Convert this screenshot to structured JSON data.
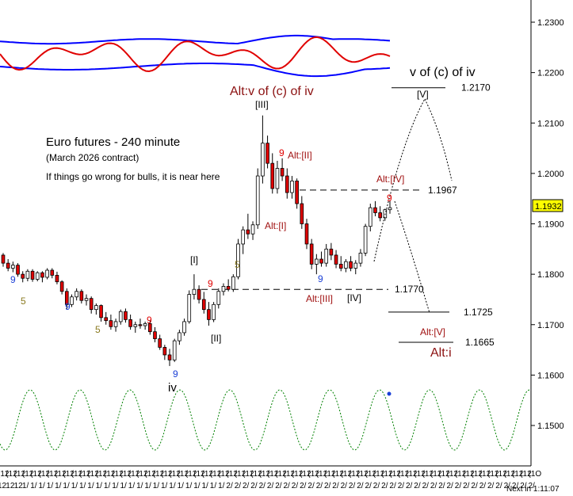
{
  "window": {
    "timer_label": "Next in",
    "timer_value": "1:11:07"
  },
  "chart_data": {
    "type": "candlestick",
    "title": "Euro futures - 240 minute",
    "subtitle": "(March 2026 contract)",
    "note": "If things go wrong for bulls, it is near here",
    "ylim": [
      1.145,
      1.238
    ],
    "y_ticks": [
      "1.2300",
      "1.2200",
      "1.2100",
      "1.2000",
      "1.1900",
      "1.1800",
      "1.1700",
      "1.1600",
      "1.1500"
    ],
    "y_tick_values": [
      1.23,
      1.22,
      1.21,
      1.2,
      1.19,
      1.18,
      1.17,
      1.16,
      1.15
    ],
    "x_tick_labels_top": [
      "(12",
      "(12",
      "(12",
      "(12",
      "(12",
      "(12",
      "(12",
      "(12",
      "(12",
      "(12",
      "(12",
      "(12",
      "(12",
      "(12",
      "(12",
      "(12",
      "(12",
      "(12",
      "(12",
      "(12",
      "(12",
      "(12",
      "(12",
      "(12",
      "(12",
      "(12",
      "(12",
      "(12",
      "(12",
      "(12",
      "(12",
      "(12",
      "(12",
      "(12",
      "(12",
      "(12",
      "(12",
      "(12",
      "(12",
      "(12",
      "(12",
      "(12",
      "(12",
      "(12",
      "(12",
      "(12",
      "(12",
      "(12",
      "(12",
      "(12",
      "(12",
      "(12",
      "(12",
      "(12",
      "(12",
      "(12",
      "(12",
      "(12",
      "(12",
      "(12",
      "(12",
      "(12",
      "(12",
      "(12",
      "(12",
      "(1O"
    ],
    "x_tick_labels_bottom": [
      "12",
      "12",
      "12",
      "1/",
      "1/",
      "1/",
      "1/",
      "1/",
      "1/",
      "1/",
      "1/",
      "1/",
      "1/",
      "1/",
      "1/",
      "1/",
      "1/",
      "1/",
      "1/",
      "1/",
      "1/",
      "1/",
      "1/",
      "1/",
      "1/",
      "1/",
      "1/",
      "1/",
      "2/",
      "2/",
      "2/",
      "2/",
      "2/",
      "2/",
      "2/",
      "2/",
      "2/",
      "2/",
      "2/",
      "2/",
      "2/",
      "2/",
      "2/",
      "2/",
      "2/",
      "2/",
      "2/",
      "2/",
      "2/",
      "2/",
      "2/",
      "2/",
      "2/",
      "2/",
      "2/",
      "2/",
      "2/",
      "2/",
      "2/",
      "2/",
      "2/",
      "2/",
      "2/",
      "2/",
      "2/",
      "2/",
      "2/"
    ],
    "current_price": "1.1932",
    "current_price_value": 1.1932,
    "candles": [
      {
        "o": 1.1838,
        "h": 1.1842,
        "l": 1.1815,
        "c": 1.1822
      },
      {
        "o": 1.1822,
        "h": 1.183,
        "l": 1.1806,
        "c": 1.1812
      },
      {
        "o": 1.1812,
        "h": 1.1825,
        "l": 1.1804,
        "c": 1.1818
      },
      {
        "o": 1.1818,
        "h": 1.1822,
        "l": 1.1795,
        "c": 1.18
      },
      {
        "o": 1.18,
        "h": 1.1806,
        "l": 1.1784,
        "c": 1.1792
      },
      {
        "o": 1.1792,
        "h": 1.181,
        "l": 1.1786,
        "c": 1.1806
      },
      {
        "o": 1.1806,
        "h": 1.181,
        "l": 1.1785,
        "c": 1.179
      },
      {
        "o": 1.179,
        "h": 1.1806,
        "l": 1.1786,
        "c": 1.1803
      },
      {
        "o": 1.1803,
        "h": 1.1806,
        "l": 1.1784,
        "c": 1.1794
      },
      {
        "o": 1.1794,
        "h": 1.1812,
        "l": 1.179,
        "c": 1.1808
      },
      {
        "o": 1.1808,
        "h": 1.1812,
        "l": 1.1792,
        "c": 1.1798
      },
      {
        "o": 1.1798,
        "h": 1.1805,
        "l": 1.178,
        "c": 1.1785
      },
      {
        "o": 1.1785,
        "h": 1.1788,
        "l": 1.176,
        "c": 1.1766
      },
      {
        "o": 1.1766,
        "h": 1.1772,
        "l": 1.173,
        "c": 1.174
      },
      {
        "o": 1.174,
        "h": 1.176,
        "l": 1.1735,
        "c": 1.1755
      },
      {
        "o": 1.1755,
        "h": 1.1772,
        "l": 1.1748,
        "c": 1.1766
      },
      {
        "o": 1.1766,
        "h": 1.177,
        "l": 1.1742,
        "c": 1.1748
      },
      {
        "o": 1.1748,
        "h": 1.176,
        "l": 1.1738,
        "c": 1.1752
      },
      {
        "o": 1.1752,
        "h": 1.1756,
        "l": 1.1722,
        "c": 1.173
      },
      {
        "o": 1.173,
        "h": 1.1742,
        "l": 1.172,
        "c": 1.1738
      },
      {
        "o": 1.1738,
        "h": 1.174,
        "l": 1.1706,
        "c": 1.1714
      },
      {
        "o": 1.1714,
        "h": 1.1725,
        "l": 1.17,
        "c": 1.1708
      },
      {
        "o": 1.1708,
        "h": 1.172,
        "l": 1.169,
        "c": 1.1696
      },
      {
        "o": 1.1696,
        "h": 1.1712,
        "l": 1.1686,
        "c": 1.1706
      },
      {
        "o": 1.1706,
        "h": 1.173,
        "l": 1.17,
        "c": 1.1726
      },
      {
        "o": 1.1726,
        "h": 1.1732,
        "l": 1.1704,
        "c": 1.171
      },
      {
        "o": 1.171,
        "h": 1.172,
        "l": 1.169,
        "c": 1.1696
      },
      {
        "o": 1.1696,
        "h": 1.1706,
        "l": 1.1684,
        "c": 1.17
      },
      {
        "o": 1.17,
        "h": 1.1712,
        "l": 1.1692,
        "c": 1.1698
      },
      {
        "o": 1.1698,
        "h": 1.1706,
        "l": 1.169,
        "c": 1.1702
      },
      {
        "o": 1.1702,
        "h": 1.1708,
        "l": 1.168,
        "c": 1.1686
      },
      {
        "o": 1.1686,
        "h": 1.1695,
        "l": 1.1665,
        "c": 1.1672
      },
      {
        "o": 1.1672,
        "h": 1.168,
        "l": 1.165,
        "c": 1.1655
      },
      {
        "o": 1.1655,
        "h": 1.166,
        "l": 1.163,
        "c": 1.164
      },
      {
        "o": 1.164,
        "h": 1.1652,
        "l": 1.1618,
        "c": 1.163
      },
      {
        "o": 1.163,
        "h": 1.1672,
        "l": 1.1626,
        "c": 1.1668
      },
      {
        "o": 1.1668,
        "h": 1.169,
        "l": 1.166,
        "c": 1.1684
      },
      {
        "o": 1.1684,
        "h": 1.1712,
        "l": 1.1678,
        "c": 1.1706
      },
      {
        "o": 1.1706,
        "h": 1.1768,
        "l": 1.1702,
        "c": 1.176
      },
      {
        "o": 1.176,
        "h": 1.18,
        "l": 1.175,
        "c": 1.177
      },
      {
        "o": 1.177,
        "h": 1.1778,
        "l": 1.1742,
        "c": 1.175
      },
      {
        "o": 1.175,
        "h": 1.1765,
        "l": 1.1722,
        "c": 1.173
      },
      {
        "o": 1.173,
        "h": 1.1745,
        "l": 1.1698,
        "c": 1.171
      },
      {
        "o": 1.171,
        "h": 1.1745,
        "l": 1.1705,
        "c": 1.174
      },
      {
        "o": 1.174,
        "h": 1.1772,
        "l": 1.1732,
        "c": 1.1766
      },
      {
        "o": 1.1766,
        "h": 1.1782,
        "l": 1.1758,
        "c": 1.1776
      },
      {
        "o": 1.1776,
        "h": 1.179,
        "l": 1.1766,
        "c": 1.177
      },
      {
        "o": 1.177,
        "h": 1.18,
        "l": 1.1765,
        "c": 1.1795
      },
      {
        "o": 1.1795,
        "h": 1.187,
        "l": 1.179,
        "c": 1.186
      },
      {
        "o": 1.186,
        "h": 1.1895,
        "l": 1.184,
        "c": 1.1888
      },
      {
        "o": 1.1888,
        "h": 1.192,
        "l": 1.187,
        "c": 1.188
      },
      {
        "o": 1.188,
        "h": 1.1905,
        "l": 1.1868,
        "c": 1.1898
      },
      {
        "o": 1.1898,
        "h": 1.201,
        "l": 1.189,
        "c": 1.1995
      },
      {
        "o": 1.1995,
        "h": 1.2115,
        "l": 1.198,
        "c": 1.206
      },
      {
        "o": 1.206,
        "h": 1.2075,
        "l": 1.201,
        "c": 1.202
      },
      {
        "o": 1.202,
        "h": 1.204,
        "l": 1.196,
        "c": 1.197
      },
      {
        "o": 1.197,
        "h": 1.2025,
        "l": 1.196,
        "c": 1.201
      },
      {
        "o": 1.201,
        "h": 1.203,
        "l": 1.1985,
        "c": 1.1995
      },
      {
        "o": 1.1995,
        "h": 1.201,
        "l": 1.195,
        "c": 1.1962
      },
      {
        "o": 1.1962,
        "h": 1.1995,
        "l": 1.195,
        "c": 1.1985
      },
      {
        "o": 1.1985,
        "h": 1.199,
        "l": 1.193,
        "c": 1.194
      },
      {
        "o": 1.194,
        "h": 1.1955,
        "l": 1.189,
        "c": 1.19
      },
      {
        "o": 1.19,
        "h": 1.191,
        "l": 1.185,
        "c": 1.186
      },
      {
        "o": 1.186,
        "h": 1.187,
        "l": 1.181,
        "c": 1.182
      },
      {
        "o": 1.182,
        "h": 1.184,
        "l": 1.18,
        "c": 1.183
      },
      {
        "o": 1.183,
        "h": 1.1845,
        "l": 1.1815,
        "c": 1.1822
      },
      {
        "o": 1.1822,
        "h": 1.186,
        "l": 1.1815,
        "c": 1.185
      },
      {
        "o": 1.185,
        "h": 1.1862,
        "l": 1.1828,
        "c": 1.1838
      },
      {
        "o": 1.1838,
        "h": 1.1848,
        "l": 1.1812,
        "c": 1.182
      },
      {
        "o": 1.182,
        "h": 1.1836,
        "l": 1.1806,
        "c": 1.1812
      },
      {
        "o": 1.1812,
        "h": 1.183,
        "l": 1.1804,
        "c": 1.1825
      },
      {
        "o": 1.1825,
        "h": 1.1836,
        "l": 1.1806,
        "c": 1.1812
      },
      {
        "o": 1.1812,
        "h": 1.1828,
        "l": 1.18,
        "c": 1.1822
      },
      {
        "o": 1.1822,
        "h": 1.185,
        "l": 1.1815,
        "c": 1.1842
      },
      {
        "o": 1.1842,
        "h": 1.19,
        "l": 1.1836,
        "c": 1.1895
      },
      {
        "o": 1.1895,
        "h": 1.194,
        "l": 1.1885,
        "c": 1.1932
      },
      {
        "o": 1.1932,
        "h": 1.1945,
        "l": 1.1915,
        "c": 1.1922
      },
      {
        "o": 1.1922,
        "h": 1.1935,
        "l": 1.1905,
        "c": 1.1912
      },
      {
        "o": 1.1912,
        "h": 1.193,
        "l": 1.1906,
        "c": 1.1928
      },
      {
        "o": 1.1928,
        "h": 1.1946,
        "l": 1.192,
        "c": 1.1932
      }
    ],
    "levels": [
      {
        "label": "1.2170",
        "value": 1.217,
        "style": "solid"
      },
      {
        "label": "1.1967",
        "value": 1.1967,
        "style": "dashed"
      },
      {
        "label": "1.1770",
        "value": 1.177,
        "style": "dashed"
      },
      {
        "label": "1.1725",
        "value": 1.1725,
        "style": "solid"
      },
      {
        "label": "1.1665",
        "value": 1.1665,
        "style": "solid"
      }
    ],
    "wave_labels_black": [
      "[I]",
      "[II]",
      "[III]",
      "[IV]",
      "[V]",
      "iv",
      "v of (c) of iv"
    ],
    "wave_labels_red": [
      "Alt:v of (c) of iv",
      "Alt:[I]",
      "Alt:[II]",
      "Alt:[III]",
      "Alt:[IV]",
      "Alt:[V]",
      "Alt:i"
    ],
    "count_labels_red": [
      "9",
      "9",
      "9",
      "9",
      "9",
      "9"
    ],
    "count_labels_blue": [
      "9",
      "9",
      "9",
      "9"
    ],
    "count_labels_olive": [
      "5",
      "5",
      "5"
    ],
    "oscillator": {
      "blue_upper_level": 1.2262,
      "blue_lower_level": 1.2212,
      "red_line": "cyclic",
      "colors": [
        "#0000ff",
        "#e00000"
      ]
    },
    "cycle_indicator": {
      "color": "#008000",
      "style": "dotted sine",
      "marker_color": "#1a3fd6"
    },
    "colors": {
      "up_candle": "#ffffff",
      "down_candle": "#e00000",
      "black": "#000000",
      "red_text": "#a01010",
      "blue_text": "#1a3fd6",
      "olive_text": "#8a7a20",
      "highlight": "#ffff00"
    }
  }
}
